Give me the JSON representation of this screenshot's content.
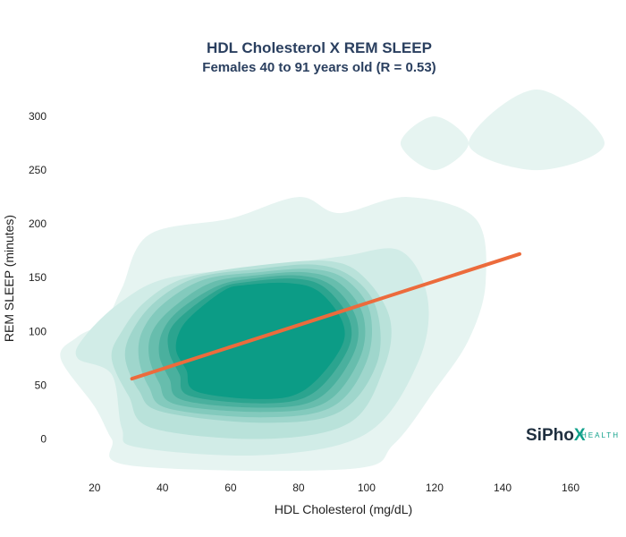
{
  "chart_data": {
    "type": "heatmap",
    "title": "HDL Cholesterol X REM SLEEP",
    "subtitle": "Females 40 to 91 years old (R = 0.53)",
    "xlabel": "HDL Cholesterol (mg/dL)",
    "ylabel": "REM SLEEP (minutes)",
    "xlim": [
      9,
      170
    ],
    "ylim": [
      -28,
      325
    ],
    "x_ticks": [
      20,
      40,
      60,
      80,
      100,
      120,
      140,
      160
    ],
    "y_ticks": [
      0,
      50,
      100,
      150,
      200,
      250,
      300
    ],
    "grid": false,
    "legend": "none",
    "density_colors": [
      "#e6f4f1",
      "#d1ece7",
      "#b9e2da",
      "#9fd6cc",
      "#83cabd",
      "#67bdad",
      "#4ab09e",
      "#2ba48f",
      "#0c9c86"
    ],
    "density_regions": [
      {
        "level": 1,
        "points": [
          [
            31,
            -25
          ],
          [
            95,
            -28
          ],
          [
            108,
            -5
          ],
          [
            120,
            45
          ],
          [
            130,
            92
          ],
          [
            135,
            145
          ],
          [
            132,
            205
          ],
          [
            112,
            225
          ],
          [
            92,
            210
          ],
          [
            80,
            225
          ],
          [
            60,
            205
          ],
          [
            36,
            190
          ],
          [
            28,
            140
          ],
          [
            23,
            110
          ],
          [
            15,
            95
          ],
          [
            10,
            75
          ],
          [
            20,
            30
          ],
          [
            25,
            0
          ]
        ]
      },
      {
        "level": 1,
        "points": [
          [
            110,
            275
          ],
          [
            120,
            300
          ],
          [
            130,
            275
          ],
          [
            120,
            250
          ]
        ]
      },
      {
        "level": 1,
        "points": [
          [
            130,
            275
          ],
          [
            150,
            325
          ],
          [
            170,
            275
          ],
          [
            150,
            250
          ]
        ]
      },
      {
        "level": 2,
        "points": [
          [
            33,
            -8
          ],
          [
            70,
            -15
          ],
          [
            100,
            5
          ],
          [
            115,
            70
          ],
          [
            118,
            130
          ],
          [
            110,
            175
          ],
          [
            93,
            170
          ],
          [
            70,
            160
          ],
          [
            42,
            150
          ],
          [
            28,
            128
          ],
          [
            17,
            95
          ],
          [
            15,
            75
          ],
          [
            25,
            60
          ],
          [
            28,
            10
          ]
        ]
      },
      {
        "level": 3,
        "points": [
          [
            37,
            10
          ],
          [
            70,
            0
          ],
          [
            95,
            15
          ],
          [
            105,
            65
          ],
          [
            107,
            110
          ],
          [
            100,
            148
          ],
          [
            90,
            165
          ],
          [
            70,
            162
          ],
          [
            47,
            150
          ],
          [
            35,
            128
          ],
          [
            28,
            100
          ],
          [
            25,
            75
          ],
          [
            30,
            40
          ]
        ]
      },
      {
        "level": 4,
        "points": [
          [
            40,
            25
          ],
          [
            70,
            15
          ],
          [
            92,
            25
          ],
          [
            103,
            70
          ],
          [
            103,
            120
          ],
          [
            96,
            150
          ],
          [
            85,
            162
          ],
          [
            68,
            158
          ],
          [
            50,
            150
          ],
          [
            38,
            128
          ],
          [
            31,
            100
          ],
          [
            29,
            75
          ],
          [
            33,
            45
          ]
        ]
      },
      {
        "level": 5,
        "points": [
          [
            42,
            28
          ],
          [
            70,
            20
          ],
          [
            90,
            30
          ],
          [
            100,
            72
          ],
          [
            101,
            118
          ],
          [
            94,
            148
          ],
          [
            84,
            158
          ],
          [
            68,
            155
          ],
          [
            52,
            148
          ],
          [
            40,
            125
          ],
          [
            34,
            100
          ],
          [
            33,
            75
          ],
          [
            36,
            48
          ]
        ]
      },
      {
        "level": 6,
        "points": [
          [
            44,
            32
          ],
          [
            70,
            25
          ],
          [
            88,
            34
          ],
          [
            98,
            75
          ],
          [
            99,
            115
          ],
          [
            92,
            145
          ],
          [
            82,
            155
          ],
          [
            67,
            152
          ],
          [
            54,
            145
          ],
          [
            43,
            122
          ],
          [
            37,
            100
          ],
          [
            36,
            77
          ],
          [
            39,
            52
          ]
        ]
      },
      {
        "level": 7,
        "points": [
          [
            46,
            36
          ],
          [
            70,
            29
          ],
          [
            86,
            38
          ],
          [
            96,
            78
          ],
          [
            97,
            112
          ],
          [
            90,
            142
          ],
          [
            80,
            152
          ],
          [
            66,
            149
          ],
          [
            56,
            142
          ],
          [
            45,
            120
          ],
          [
            40,
            100
          ],
          [
            39,
            78
          ],
          [
            42,
            56
          ]
        ]
      },
      {
        "level": 8,
        "points": [
          [
            48,
            40
          ],
          [
            70,
            33
          ],
          [
            84,
            42
          ],
          [
            94,
            80
          ],
          [
            95,
            110
          ],
          [
            88,
            140
          ],
          [
            79,
            149
          ],
          [
            65,
            146
          ],
          [
            57,
            140
          ],
          [
            47,
            118
          ],
          [
            42,
            100
          ],
          [
            42,
            80
          ],
          [
            45,
            60
          ]
        ]
      },
      {
        "level": 9,
        "points": [
          [
            50,
            44
          ],
          [
            70,
            37
          ],
          [
            82,
            46
          ],
          [
            92,
            82
          ],
          [
            93,
            108
          ],
          [
            86,
            137
          ],
          [
            77,
            145
          ],
          [
            64,
            143
          ],
          [
            58,
            138
          ],
          [
            49,
            116
          ],
          [
            45,
            100
          ],
          [
            44,
            82
          ],
          [
            47,
            64
          ]
        ]
      }
    ],
    "series": [
      {
        "type": "line",
        "x": [
          31,
          145
        ],
        "y": [
          56,
          172
        ],
        "color": "#ec6b3c"
      }
    ]
  },
  "logo": {
    "name_a": "SiPho",
    "name_b": "X",
    "sub": "HEALTH",
    "color_a": "#1f2f3f",
    "color_b": "#0fa08a"
  }
}
